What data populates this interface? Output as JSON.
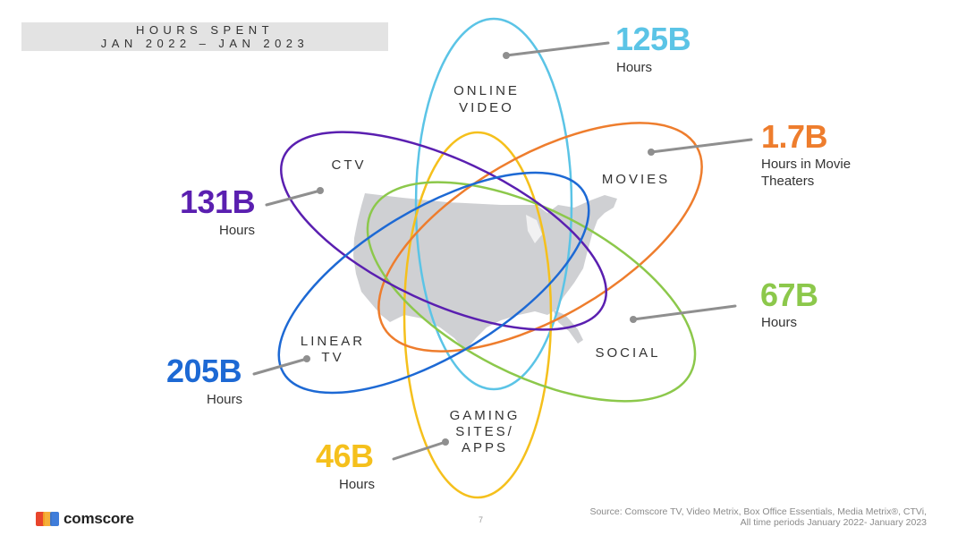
{
  "header": {
    "line1": "HOURS SPENT",
    "line2": "JAN 2022 – JAN 2023"
  },
  "categories": {
    "online_video": {
      "line1": "ONLINE",
      "line2": "VIDEO",
      "value": "125B",
      "unit": "Hours",
      "color": "#5bc4e6"
    },
    "movies": {
      "line1": "MOVIES",
      "value": "1.7B",
      "unit_line1": "Hours in Movie",
      "unit_line2": "Theaters",
      "color": "#ee7d2d"
    },
    "social": {
      "line1": "SOCIAL",
      "value": "67B",
      "unit": "Hours",
      "color": "#8cc84b"
    },
    "gaming": {
      "line1": "GAMING",
      "line2": "SITES/",
      "line3": "APPS",
      "value": "46B",
      "unit": "Hours",
      "color": "#f5c01c"
    },
    "linear_tv": {
      "line1": "LINEAR",
      "line2": "TV",
      "value": "205B",
      "unit": "Hours",
      "color": "#1d69d4"
    },
    "ctv": {
      "line1": "CTV",
      "value": "131B",
      "unit": "Hours",
      "color": "#5a1fb0"
    }
  },
  "footer": {
    "source_line1": "Source: Comscore TV, Video Metrix, Box Office Essentials, Media Metrix®, CTVi,",
    "source_line2": "All time periods January 2022- January 2023",
    "page_number": "7",
    "brand": "comscore"
  },
  "colors": {
    "map": "#cfd0d3",
    "leader": "#8f8f8f",
    "header_band": "#e3e3e3"
  }
}
